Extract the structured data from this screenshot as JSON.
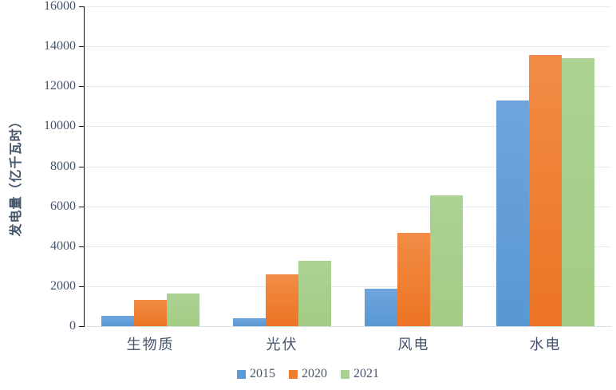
{
  "chart_data": {
    "type": "bar",
    "title": "",
    "ylabel": "发电量（亿千瓦时）",
    "xlabel": "",
    "categories": [
      "生物质",
      "光伏",
      "风电",
      "水电"
    ],
    "series": [
      {
        "name": "2015",
        "color": "#5B9BD5",
        "color_top": "#6FA5DC",
        "color_bottom": "#5897D4",
        "values": [
          527,
          395,
          1863,
          11303
        ]
      },
      {
        "name": "2020",
        "color": "#ED7D31",
        "color_top": "#F28C46",
        "color_bottom": "#EC7424",
        "values": [
          1326,
          2611,
          4665,
          13553
        ]
      },
      {
        "name": "2021",
        "color": "#A9D18E",
        "color_top": "#ABD293",
        "color_bottom": "#A3CC84",
        "values": [
          1637,
          3270,
          6526,
          13401
        ]
      }
    ],
    "ylim": [
      0,
      16000
    ],
    "ytick_step": 2000,
    "ytick_labels": [
      "0",
      "2000",
      "4000",
      "6000",
      "8000",
      "10000",
      "12000",
      "14000",
      "16000"
    ],
    "grid": "horizontal",
    "legend_position": "bottom-center",
    "colors": {
      "text": "#44546A",
      "gridline": "#E6EAF0",
      "baseline": "#D9DFE8",
      "axis": "#141414",
      "background": "#FFFFFF"
    }
  }
}
